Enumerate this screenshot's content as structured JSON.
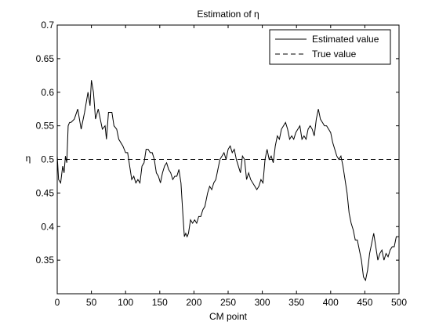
{
  "chart_data": {
    "type": "line",
    "title": "Estimation of η",
    "xlabel": "CM point",
    "ylabel": "η",
    "xlim": [
      0,
      500
    ],
    "ylim": [
      0.3,
      0.7
    ],
    "xticks": [
      0,
      50,
      100,
      150,
      200,
      250,
      300,
      350,
      400,
      450,
      500
    ],
    "yticks": [
      0.35,
      0.4,
      0.45,
      0.5,
      0.55,
      0.6,
      0.65,
      0.7
    ],
    "xtick_labels": [
      "0",
      "50",
      "100",
      "150",
      "200",
      "250",
      "300",
      "350",
      "400",
      "450",
      "500"
    ],
    "ytick_labels": [
      "0.35",
      "0.4",
      "0.45",
      "0.5",
      "0.55",
      "0.6",
      "0.65",
      "0.7"
    ],
    "grid": false,
    "legend": "top-right",
    "series": [
      {
        "name": "Estimated value",
        "style": "solid",
        "color": "#000000",
        "x": [
          0,
          2,
          5,
          8,
          10,
          12,
          14,
          16,
          18,
          20,
          25,
          30,
          35,
          40,
          45,
          48,
          50,
          53,
          56,
          60,
          63,
          66,
          70,
          72,
          75,
          80,
          83,
          87,
          90,
          93,
          96,
          100,
          103,
          106,
          109,
          112,
          115,
          118,
          121,
          124,
          127,
          130,
          133,
          136,
          139,
          142,
          145,
          148,
          151,
          154,
          157,
          160,
          163,
          166,
          169,
          172,
          175,
          178,
          181,
          184,
          186,
          188,
          190,
          192,
          195,
          198,
          201,
          204,
          207,
          210,
          213,
          216,
          220,
          223,
          226,
          229,
          232,
          235,
          238,
          241,
          244,
          247,
          250,
          253,
          256,
          259,
          262,
          265,
          268,
          271,
          274,
          277,
          280,
          283,
          286,
          289,
          292,
          295,
          298,
          301,
          304,
          307,
          310,
          313,
          316,
          319,
          322,
          325,
          328,
          331,
          334,
          337,
          340,
          343,
          346,
          349,
          352,
          355,
          358,
          361,
          364,
          367,
          370,
          373,
          376,
          379,
          382,
          385,
          388,
          391,
          394,
          397,
          400,
          403,
          406,
          409,
          412,
          415,
          418,
          421,
          424,
          427,
          430,
          433,
          436,
          439,
          442,
          445,
          448,
          451,
          454,
          457,
          460,
          463,
          466,
          469,
          472,
          475,
          478,
          481,
          484,
          487,
          490,
          493,
          496,
          500
        ],
        "y": [
          0.505,
          0.47,
          0.465,
          0.49,
          0.48,
          0.505,
          0.495,
          0.55,
          0.555,
          0.555,
          0.56,
          0.575,
          0.545,
          0.57,
          0.6,
          0.58,
          0.618,
          0.6,
          0.56,
          0.575,
          0.56,
          0.545,
          0.55,
          0.53,
          0.57,
          0.57,
          0.55,
          0.545,
          0.53,
          0.525,
          0.52,
          0.51,
          0.51,
          0.49,
          0.47,
          0.475,
          0.465,
          0.47,
          0.465,
          0.49,
          0.495,
          0.515,
          0.515,
          0.51,
          0.51,
          0.5,
          0.48,
          0.475,
          0.465,
          0.48,
          0.49,
          0.495,
          0.485,
          0.48,
          0.47,
          0.475,
          0.475,
          0.485,
          0.465,
          0.415,
          0.385,
          0.39,
          0.385,
          0.39,
          0.41,
          0.405,
          0.41,
          0.405,
          0.415,
          0.415,
          0.425,
          0.43,
          0.45,
          0.46,
          0.455,
          0.465,
          0.47,
          0.485,
          0.5,
          0.505,
          0.51,
          0.5,
          0.515,
          0.52,
          0.51,
          0.515,
          0.5,
          0.49,
          0.48,
          0.505,
          0.5,
          0.47,
          0.48,
          0.47,
          0.465,
          0.46,
          0.455,
          0.46,
          0.47,
          0.465,
          0.5,
          0.515,
          0.5,
          0.505,
          0.495,
          0.52,
          0.535,
          0.53,
          0.545,
          0.55,
          0.555,
          0.545,
          0.53,
          0.535,
          0.53,
          0.54,
          0.545,
          0.55,
          0.53,
          0.535,
          0.53,
          0.545,
          0.55,
          0.545,
          0.535,
          0.56,
          0.575,
          0.56,
          0.555,
          0.55,
          0.55,
          0.545,
          0.54,
          0.525,
          0.515,
          0.505,
          0.5,
          0.505,
          0.49,
          0.47,
          0.45,
          0.42,
          0.405,
          0.395,
          0.38,
          0.38,
          0.365,
          0.35,
          0.325,
          0.32,
          0.335,
          0.36,
          0.375,
          0.39,
          0.37,
          0.35,
          0.36,
          0.365,
          0.35,
          0.36,
          0.355,
          0.365,
          0.37,
          0.37,
          0.385,
          0.385
        ]
      },
      {
        "name": "True value",
        "style": "dashed",
        "color": "#000000",
        "x": [
          0,
          500
        ],
        "y": [
          0.5,
          0.5
        ]
      }
    ]
  }
}
